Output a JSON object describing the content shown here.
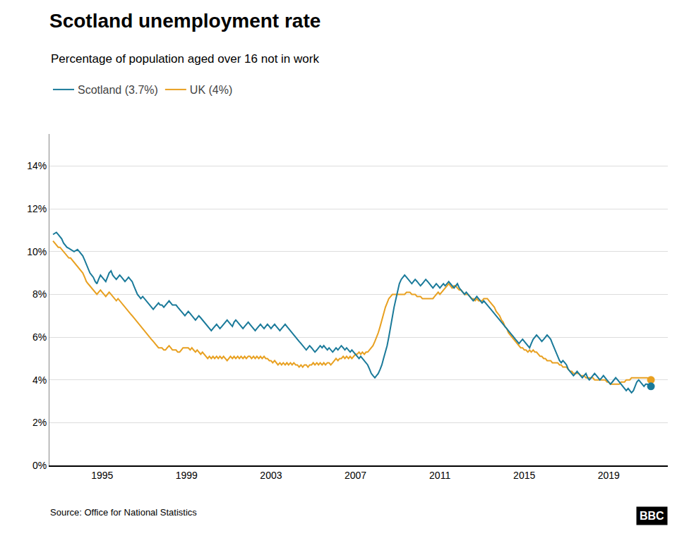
{
  "chart_data": {
    "type": "line",
    "title": "Scotland unemployment rate",
    "subtitle": "Percentage of population aged over 16 not in work",
    "annotations": [
      "Source: Office for National Statistics",
      "BBC"
    ],
    "x": [
      1992.67,
      1992.75,
      1992.83,
      1992.92,
      1993,
      1993.08,
      1993.17,
      1993.25,
      1993.33,
      1993.42,
      1993.5,
      1993.58,
      1993.67,
      1993.75,
      1993.83,
      1993.92,
      1994,
      1994.08,
      1994.17,
      1994.25,
      1994.33,
      1994.42,
      1994.5,
      1994.58,
      1994.67,
      1994.75,
      1994.83,
      1994.92,
      1995,
      1995.08,
      1995.17,
      1995.25,
      1995.33,
      1995.42,
      1995.5,
      1995.58,
      1995.67,
      1995.75,
      1995.83,
      1995.92,
      1996,
      1996.08,
      1996.17,
      1996.25,
      1996.33,
      1996.42,
      1996.5,
      1996.58,
      1996.67,
      1996.75,
      1996.83,
      1996.92,
      1997,
      1997.08,
      1997.17,
      1997.25,
      1997.33,
      1997.42,
      1997.5,
      1997.58,
      1997.67,
      1997.75,
      1997.83,
      1997.92,
      1998,
      1998.08,
      1998.17,
      1998.25,
      1998.33,
      1998.42,
      1998.5,
      1998.58,
      1998.67,
      1998.75,
      1998.83,
      1998.92,
      1999,
      1999.08,
      1999.17,
      1999.25,
      1999.33,
      1999.42,
      1999.5,
      1999.58,
      1999.67,
      1999.75,
      1999.83,
      1999.92,
      2000,
      2000.08,
      2000.17,
      2000.25,
      2000.33,
      2000.42,
      2000.5,
      2000.58,
      2000.67,
      2000.75,
      2000.83,
      2000.92,
      2001,
      2001.08,
      2001.17,
      2001.25,
      2001.33,
      2001.42,
      2001.5,
      2001.58,
      2001.67,
      2001.75,
      2001.83,
      2001.92,
      2002,
      2002.08,
      2002.17,
      2002.25,
      2002.33,
      2002.42,
      2002.5,
      2002.58,
      2002.67,
      2002.75,
      2002.83,
      2002.92,
      2003,
      2003.08,
      2003.17,
      2003.25,
      2003.33,
      2003.42,
      2003.5,
      2003.58,
      2003.67,
      2003.75,
      2003.83,
      2003.92,
      2004,
      2004.08,
      2004.17,
      2004.25,
      2004.33,
      2004.42,
      2004.5,
      2004.58,
      2004.67,
      2004.75,
      2004.83,
      2004.92,
      2005,
      2005.08,
      2005.17,
      2005.25,
      2005.33,
      2005.42,
      2005.5,
      2005.58,
      2005.67,
      2005.75,
      2005.83,
      2005.92,
      2006,
      2006.08,
      2006.17,
      2006.25,
      2006.33,
      2006.42,
      2006.5,
      2006.58,
      2006.67,
      2006.75,
      2006.83,
      2006.92,
      2007,
      2007.08,
      2007.17,
      2007.25,
      2007.33,
      2007.42,
      2007.5,
      2007.58,
      2007.67,
      2007.75,
      2007.83,
      2007.92,
      2008,
      2008.08,
      2008.17,
      2008.25,
      2008.33,
      2008.42,
      2008.5,
      2008.58,
      2008.67,
      2008.75,
      2008.83,
      2008.92,
      2009,
      2009.08,
      2009.17,
      2009.25,
      2009.33,
      2009.42,
      2009.5,
      2009.58,
      2009.67,
      2009.75,
      2009.83,
      2009.92,
      2010,
      2010.08,
      2010.17,
      2010.25,
      2010.33,
      2010.42,
      2010.5,
      2010.58,
      2010.67,
      2010.75,
      2010.83,
      2010.92,
      2011,
      2011.08,
      2011.17,
      2011.25,
      2011.33,
      2011.42,
      2011.5,
      2011.58,
      2011.67,
      2011.75,
      2011.83,
      2011.92,
      2012,
      2012.08,
      2012.17,
      2012.25,
      2012.33,
      2012.42,
      2012.5,
      2012.58,
      2012.67,
      2012.75,
      2012.83,
      2012.92,
      2013,
      2013.08,
      2013.17,
      2013.25,
      2013.33,
      2013.42,
      2013.5,
      2013.58,
      2013.67,
      2013.75,
      2013.83,
      2013.92,
      2014,
      2014.08,
      2014.17,
      2014.25,
      2014.33,
      2014.42,
      2014.5,
      2014.58,
      2014.67,
      2014.75,
      2014.83,
      2014.92,
      2015,
      2015.08,
      2015.17,
      2015.25,
      2015.33,
      2015.42,
      2015.5,
      2015.58,
      2015.67,
      2015.75,
      2015.83,
      2015.92,
      2016,
      2016.08,
      2016.17,
      2016.25,
      2016.33,
      2016.42,
      2016.5,
      2016.58,
      2016.67,
      2016.75,
      2016.83,
      2016.92,
      2017,
      2017.08,
      2017.17,
      2017.25,
      2017.33,
      2017.42,
      2017.5,
      2017.58,
      2017.67,
      2017.75,
      2017.83,
      2017.92,
      2018,
      2018.08,
      2018.17,
      2018.25,
      2018.33,
      2018.42,
      2018.5,
      2018.58,
      2018.67,
      2018.75,
      2018.83,
      2018.92,
      2019,
      2019.08,
      2019.17,
      2019.25,
      2019.33,
      2019.42,
      2019.5,
      2019.58,
      2019.67,
      2019.75,
      2019.83,
      2019.92,
      2020,
      2020.08,
      2020.17,
      2020.25,
      2020.33,
      2020.42,
      2020.5,
      2020.58,
      2020.67,
      2020.75,
      2020.83,
      2020.92,
      2021
    ],
    "series": [
      {
        "name": "Scotland (3.7%)",
        "color": "#1a7a9a",
        "values": [
          10.8,
          10.85,
          10.9,
          10.8,
          10.7,
          10.6,
          10.4,
          10.3,
          10.2,
          10.15,
          10.1,
          10.05,
          10.0,
          10.05,
          10.1,
          10.0,
          9.9,
          9.8,
          9.6,
          9.4,
          9.2,
          9.0,
          8.9,
          8.8,
          8.6,
          8.5,
          8.7,
          8.9,
          8.8,
          8.7,
          8.6,
          8.8,
          9.0,
          9.1,
          8.9,
          8.8,
          8.7,
          8.8,
          8.9,
          8.8,
          8.7,
          8.6,
          8.7,
          8.8,
          8.7,
          8.6,
          8.4,
          8.2,
          8.0,
          7.9,
          7.8,
          7.9,
          7.8,
          7.7,
          7.6,
          7.5,
          7.4,
          7.3,
          7.4,
          7.5,
          7.6,
          7.5,
          7.5,
          7.4,
          7.5,
          7.6,
          7.7,
          7.6,
          7.5,
          7.5,
          7.5,
          7.4,
          7.3,
          7.2,
          7.1,
          7.0,
          7.1,
          7.2,
          7.1,
          7.0,
          6.9,
          6.8,
          6.9,
          7.0,
          6.9,
          6.8,
          6.7,
          6.6,
          6.5,
          6.4,
          6.3,
          6.4,
          6.5,
          6.6,
          6.5,
          6.4,
          6.5,
          6.6,
          6.7,
          6.8,
          6.7,
          6.6,
          6.5,
          6.7,
          6.8,
          6.7,
          6.6,
          6.5,
          6.4,
          6.5,
          6.6,
          6.7,
          6.6,
          6.5,
          6.4,
          6.3,
          6.4,
          6.5,
          6.6,
          6.5,
          6.4,
          6.5,
          6.6,
          6.5,
          6.4,
          6.5,
          6.6,
          6.5,
          6.4,
          6.3,
          6.4,
          6.5,
          6.6,
          6.5,
          6.4,
          6.3,
          6.2,
          6.1,
          6.0,
          5.9,
          5.8,
          5.7,
          5.6,
          5.5,
          5.4,
          5.5,
          5.6,
          5.5,
          5.4,
          5.3,
          5.4,
          5.5,
          5.6,
          5.5,
          5.6,
          5.5,
          5.4,
          5.5,
          5.4,
          5.3,
          5.4,
          5.5,
          5.4,
          5.5,
          5.6,
          5.5,
          5.4,
          5.5,
          5.4,
          5.3,
          5.4,
          5.3,
          5.2,
          5.1,
          5.0,
          5.1,
          5.0,
          4.9,
          4.8,
          4.7,
          4.5,
          4.3,
          4.2,
          4.1,
          4.2,
          4.3,
          4.5,
          4.7,
          5.0,
          5.3,
          5.6,
          6.0,
          6.5,
          7.0,
          7.4,
          7.8,
          8.2,
          8.5,
          8.7,
          8.8,
          8.9,
          8.8,
          8.7,
          8.6,
          8.5,
          8.6,
          8.7,
          8.6,
          8.5,
          8.4,
          8.5,
          8.6,
          8.7,
          8.6,
          8.5,
          8.4,
          8.3,
          8.4,
          8.5,
          8.4,
          8.3,
          8.4,
          8.5,
          8.4,
          8.5,
          8.6,
          8.5,
          8.4,
          8.3,
          8.4,
          8.5,
          8.3,
          8.2,
          8.1,
          8.0,
          8.1,
          8.0,
          7.9,
          7.8,
          7.7,
          7.8,
          7.9,
          7.8,
          7.7,
          7.6,
          7.7,
          7.6,
          7.5,
          7.4,
          7.3,
          7.2,
          7.1,
          7.0,
          6.9,
          6.8,
          6.7,
          6.6,
          6.5,
          6.4,
          6.3,
          6.2,
          6.1,
          6.0,
          5.9,
          5.8,
          5.7,
          5.8,
          5.9,
          5.8,
          5.7,
          5.6,
          5.5,
          5.7,
          5.9,
          6.0,
          6.1,
          6.0,
          5.9,
          5.8,
          5.9,
          6.0,
          6.1,
          6.0,
          5.9,
          5.7,
          5.5,
          5.3,
          5.1,
          4.9,
          4.8,
          4.9,
          4.8,
          4.7,
          4.5,
          4.4,
          4.3,
          4.2,
          4.3,
          4.4,
          4.3,
          4.2,
          4.1,
          4.2,
          4.3,
          4.1,
          4.0,
          4.1,
          4.2,
          4.3,
          4.2,
          4.1,
          4.0,
          4.1,
          4.2,
          4.1,
          4.0,
          3.9,
          3.8,
          3.9,
          4.0,
          4.1,
          4.0,
          3.9,
          3.8,
          3.7,
          3.6,
          3.5,
          3.6,
          3.5,
          3.4,
          3.5,
          3.7,
          3.9,
          4.0,
          3.9,
          3.8,
          3.7,
          3.8,
          3.8,
          3.7,
          3.7
        ]
      },
      {
        "name": "UK (4%)",
        "color": "#e8a020",
        "values": [
          10.5,
          10.4,
          10.3,
          10.2,
          10.2,
          10.1,
          10.0,
          9.9,
          9.8,
          9.7,
          9.7,
          9.6,
          9.5,
          9.4,
          9.3,
          9.2,
          9.1,
          9.0,
          8.8,
          8.6,
          8.5,
          8.4,
          8.3,
          8.2,
          8.1,
          8.0,
          8.1,
          8.2,
          8.1,
          8.0,
          7.9,
          8.0,
          8.1,
          8.0,
          7.9,
          7.8,
          7.7,
          7.8,
          7.7,
          7.6,
          7.5,
          7.4,
          7.3,
          7.2,
          7.1,
          7.0,
          6.9,
          6.8,
          6.7,
          6.6,
          6.5,
          6.4,
          6.3,
          6.2,
          6.1,
          6.0,
          5.9,
          5.8,
          5.7,
          5.6,
          5.5,
          5.5,
          5.5,
          5.4,
          5.4,
          5.5,
          5.6,
          5.5,
          5.4,
          5.4,
          5.4,
          5.3,
          5.3,
          5.4,
          5.5,
          5.5,
          5.5,
          5.5,
          5.4,
          5.5,
          5.4,
          5.3,
          5.4,
          5.3,
          5.2,
          5.3,
          5.2,
          5.1,
          5.0,
          5.1,
          5.0,
          5.1,
          5.0,
          5.1,
          5.0,
          5.1,
          5.0,
          5.1,
          5.0,
          4.9,
          5.0,
          5.1,
          5.0,
          5.1,
          5.0,
          5.1,
          5.0,
          5.1,
          5.0,
          5.1,
          5.0,
          5.1,
          5.1,
          5.0,
          5.1,
          5.0,
          5.1,
          5.0,
          5.1,
          5.0,
          5.1,
          5.0,
          5.0,
          4.9,
          4.9,
          4.8,
          4.9,
          4.8,
          4.7,
          4.8,
          4.7,
          4.8,
          4.7,
          4.8,
          4.7,
          4.8,
          4.7,
          4.8,
          4.7,
          4.7,
          4.6,
          4.7,
          4.6,
          4.7,
          4.7,
          4.6,
          4.7,
          4.7,
          4.8,
          4.7,
          4.8,
          4.7,
          4.8,
          4.7,
          4.8,
          4.7,
          4.8,
          4.8,
          4.7,
          4.8,
          4.9,
          5.0,
          4.9,
          5.0,
          5.0,
          5.1,
          5.0,
          5.1,
          5.0,
          5.1,
          5.0,
          5.1,
          5.2,
          5.2,
          5.3,
          5.2,
          5.3,
          5.2,
          5.3,
          5.3,
          5.4,
          5.5,
          5.6,
          5.8,
          6.0,
          6.2,
          6.5,
          6.8,
          7.1,
          7.4,
          7.6,
          7.8,
          7.9,
          8.0,
          8.0,
          8.0,
          8.0,
          8.0,
          8.0,
          8.0,
          8.0,
          8.1,
          8.1,
          8.1,
          8.0,
          8.0,
          8.0,
          7.9,
          7.9,
          7.9,
          7.8,
          7.8,
          7.8,
          7.8,
          7.8,
          7.8,
          7.8,
          7.9,
          8.0,
          8.1,
          8.0,
          8.1,
          8.2,
          8.3,
          8.4,
          8.5,
          8.4,
          8.3,
          8.4,
          8.4,
          8.3,
          8.2,
          8.2,
          8.1,
          8.0,
          8.0,
          8.0,
          7.9,
          7.8,
          7.8,
          7.7,
          7.8,
          7.7,
          7.7,
          7.7,
          7.8,
          7.8,
          7.8,
          7.7,
          7.6,
          7.5,
          7.4,
          7.2,
          7.1,
          7.0,
          6.8,
          6.7,
          6.5,
          6.4,
          6.2,
          6.1,
          6.0,
          5.9,
          5.8,
          5.7,
          5.6,
          5.5,
          5.5,
          5.4,
          5.4,
          5.3,
          5.4,
          5.3,
          5.4,
          5.3,
          5.3,
          5.2,
          5.1,
          5.1,
          5.0,
          5.0,
          4.9,
          4.9,
          4.9,
          4.8,
          4.8,
          4.8,
          4.8,
          4.7,
          4.7,
          4.6,
          4.6,
          4.6,
          4.5,
          4.4,
          4.4,
          4.3,
          4.3,
          4.3,
          4.3,
          4.2,
          4.2,
          4.2,
          4.1,
          4.1,
          4.1,
          4.1,
          4.1,
          4.0,
          4.0,
          4.0,
          4.0,
          4.0,
          4.0,
          4.0,
          3.9,
          3.9,
          3.8,
          3.8,
          3.8,
          3.8,
          3.8,
          3.8,
          3.9,
          3.9,
          3.9,
          4.0,
          4.0,
          4.0,
          4.1,
          4.1,
          4.1,
          4.1,
          4.1,
          4.1,
          4.1,
          4.1,
          4.1,
          4.1,
          4.0,
          4.0
        ]
      }
    ],
    "xlim": [
      1992.5,
      2021.8
    ],
    "xticks": [
      1995,
      1999,
      2003,
      2007,
      2011,
      2015,
      2019
    ],
    "ylim": [
      0,
      15.5
    ],
    "yticks": [
      {
        "value": 0,
        "label": "0%"
      },
      {
        "value": 2,
        "label": "2%"
      },
      {
        "value": 4,
        "label": "4%"
      },
      {
        "value": 6,
        "label": "6%"
      },
      {
        "value": 8,
        "label": "8%"
      },
      {
        "value": 10,
        "label": "10%"
      },
      {
        "value": 12,
        "label": "12%"
      },
      {
        "value": 14,
        "label": "14%"
      }
    ],
    "grid": "y",
    "legend": "top left"
  }
}
